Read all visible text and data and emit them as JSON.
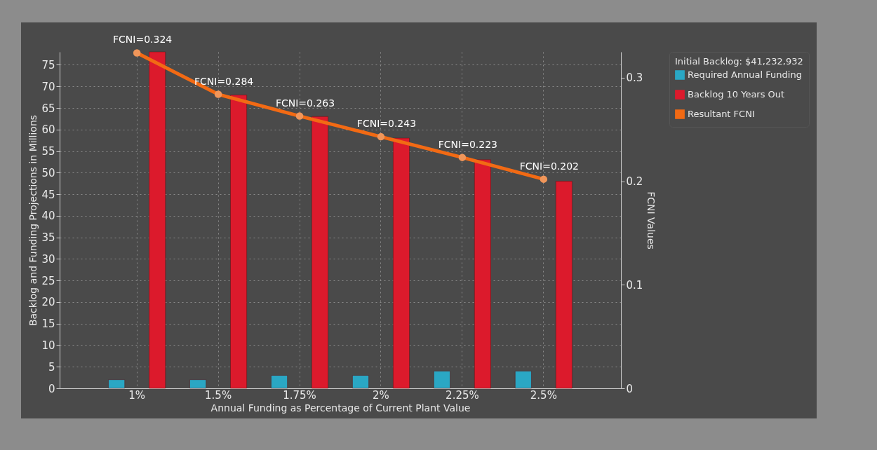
{
  "chart_data": {
    "type": "bar",
    "xlabel": "Annual Funding as Percentage of Current Plant Value",
    "ylabel": "Backlog and Funding Projections in Millions",
    "y2label": "FCNI Values",
    "legend_title": "Initial Backlog: $41,232,932",
    "categories": [
      "1%",
      "1.5%",
      "1.75%",
      "2%",
      "2.25%",
      "2.5%"
    ],
    "series": [
      {
        "name": "Required Annual Funding",
        "color": "#2aa7c4",
        "values": [
          2,
          2,
          3,
          3,
          4,
          4
        ]
      },
      {
        "name": "Backlog 10 Years Out",
        "color": "#dc1a2c",
        "values": [
          78,
          68,
          63,
          58,
          53,
          48
        ]
      },
      {
        "name": "Resultant FCNI",
        "color": "#f26a14",
        "type": "line",
        "axis": "y2",
        "marker": "circle",
        "values": [
          0.324,
          0.284,
          0.263,
          0.243,
          0.223,
          0.202
        ],
        "value_labels": [
          "FCNI=0.324",
          "FCNI=0.284",
          "FCNI=0.263",
          "FCNI=0.243",
          "FCNI=0.223",
          "FCNI=0.202"
        ]
      }
    ],
    "ylim": [
      0,
      78
    ],
    "yticks": [
      0,
      5,
      10,
      15,
      20,
      25,
      30,
      35,
      40,
      45,
      50,
      55,
      60,
      65,
      70,
      75
    ],
    "y2lim": [
      0,
      0.325
    ],
    "y2ticks": [
      0,
      0.1,
      0.2,
      0.3
    ],
    "grid": true,
    "legend": "right"
  }
}
